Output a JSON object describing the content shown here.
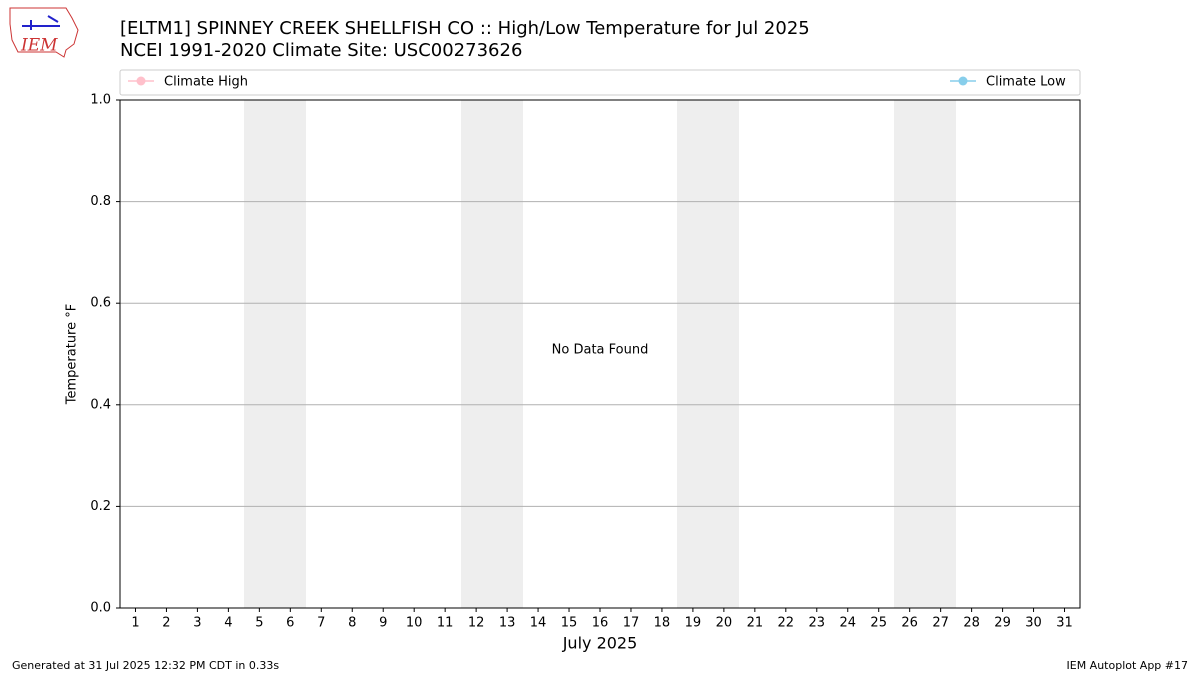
{
  "logo_text": "IEM",
  "chart_data": {
    "type": "line",
    "title": "[ELTM1] SPINNEY CREEK SHELLFISH CO :: High/Low Temperature for Jul 2025",
    "subtitle": "NCEI 1991-2020 Climate Site: USC00273626",
    "x_label": "July 2025",
    "y_label": "Temperature °F",
    "annotation": "No Data Found",
    "x": [
      1,
      2,
      3,
      4,
      5,
      6,
      7,
      8,
      9,
      10,
      11,
      12,
      13,
      14,
      15,
      16,
      17,
      18,
      19,
      20,
      21,
      22,
      23,
      24,
      25,
      26,
      27,
      28,
      29,
      30,
      31
    ],
    "series": [
      {
        "name": "Climate High",
        "color": "pink",
        "values": [
          null,
          null,
          null,
          null,
          null,
          null,
          null,
          null,
          null,
          null,
          null,
          null,
          null,
          null,
          null,
          null,
          null,
          null,
          null,
          null,
          null,
          null,
          null,
          null,
          null,
          null,
          null,
          null,
          null,
          null,
          null
        ]
      },
      {
        "name": "Climate Low",
        "color": "skyblue",
        "values": [
          null,
          null,
          null,
          null,
          null,
          null,
          null,
          null,
          null,
          null,
          null,
          null,
          null,
          null,
          null,
          null,
          null,
          null,
          null,
          null,
          null,
          null,
          null,
          null,
          null,
          null,
          null,
          null,
          null,
          null,
          null
        ]
      }
    ],
    "xlim": [
      0.5,
      31.5
    ],
    "xticks": [
      1,
      2,
      3,
      4,
      5,
      6,
      7,
      8,
      9,
      10,
      11,
      12,
      13,
      14,
      15,
      16,
      17,
      18,
      19,
      20,
      21,
      22,
      23,
      24,
      25,
      26,
      27,
      28,
      29,
      30,
      31
    ],
    "ylim": [
      0,
      1
    ],
    "yticks": [
      {
        "value": 0,
        "label": "0.0"
      },
      0.2,
      0.4,
      0.6,
      0.8,
      {
        "value": 1,
        "label": "1.0"
      }
    ],
    "grid": true,
    "footer_left": "Generated at 31 Jul 2025 12:32 PM CDT in 0.33s",
    "footer_right": "IEM Autoplot App #17"
  }
}
